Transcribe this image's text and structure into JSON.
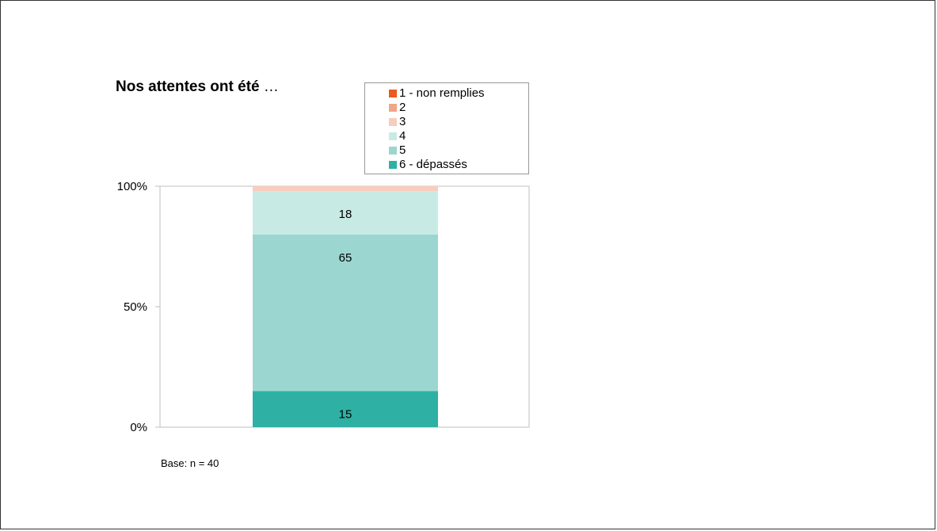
{
  "chart_data": {
    "type": "bar",
    "stacked": true,
    "normalized": true,
    "title_bold": "Nos attentes ont été",
    "title_suffix": " …",
    "categories": [
      ""
    ],
    "series": [
      {
        "name": "1 - non remplies",
        "color": "#EC5A1E",
        "values": [
          0
        ]
      },
      {
        "name": "2",
        "color": "#F1A68A",
        "values": [
          0
        ]
      },
      {
        "name": "3",
        "color": "#F8CDBE",
        "values": [
          2
        ]
      },
      {
        "name": "4",
        "color": "#C8EAE5",
        "values": [
          18
        ]
      },
      {
        "name": "5",
        "color": "#9BD7D0",
        "values": [
          65
        ]
      },
      {
        "name": "6 - dépassés",
        "color": "#2EB1A4",
        "values": [
          15
        ]
      }
    ],
    "yticks": [
      "0%",
      "50%",
      "100%"
    ],
    "ylim": [
      0,
      100
    ],
    "legend_position": "top-right",
    "grid": false
  },
  "footnote": "Base: n = 40"
}
